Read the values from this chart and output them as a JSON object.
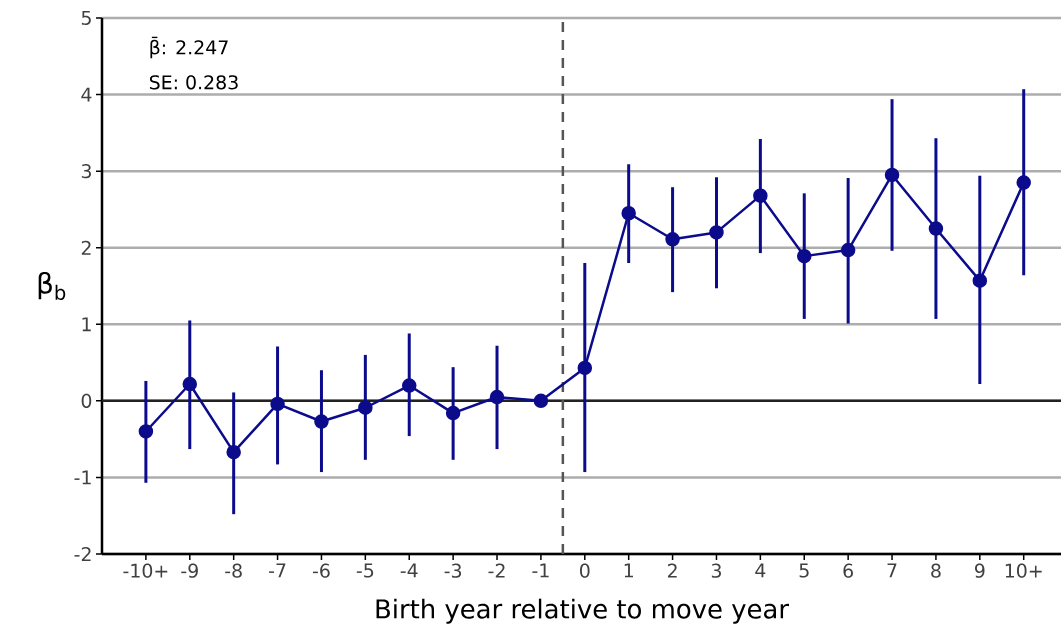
{
  "chart_data": {
    "type": "line",
    "xlabel": "Birth year relative to move year",
    "ylabel": "β$_{b}$",
    "x": [
      -10,
      -9,
      -8,
      -7,
      -6,
      -5,
      -4,
      -3,
      -2,
      -1,
      0,
      1,
      2,
      3,
      4,
      5,
      6,
      7,
      8,
      9,
      10
    ],
    "series": [
      {
        "color": "#0b0b8c",
        "values": [
          -0.4,
          0.22,
          -0.67,
          -0.04,
          -0.27,
          -0.09,
          0.2,
          -0.16,
          0.05,
          0,
          0.43,
          2.45,
          2.11,
          2.2,
          2.68,
          1.89,
          1.97,
          2.95,
          2.25,
          1.57,
          2.85
        ],
        "errors": [
          [
            -1.07,
            0.26
          ],
          [
            -0.63,
            1.05
          ],
          [
            -1.48,
            0.11
          ],
          [
            -0.83,
            0.71
          ],
          [
            -0.93,
            0.4
          ],
          [
            -0.77,
            0.6
          ],
          [
            -0.46,
            0.88
          ],
          [
            -0.77,
            0.44
          ],
          [
            -0.63,
            0.72
          ],
          null,
          [
            -0.93,
            1.8
          ],
          [
            1.8,
            3.09
          ],
          [
            1.42,
            2.79
          ],
          [
            1.47,
            2.92
          ],
          [
            1.93,
            3.42
          ],
          [
            1.07,
            2.71
          ],
          [
            1.01,
            2.91
          ],
          [
            1.96,
            3.94
          ],
          [
            1.07,
            3.43
          ],
          [
            0.22,
            2.94
          ],
          [
            1.64,
            4.07
          ]
        ]
      }
    ],
    "xlim": [
      -11,
      10.85
    ],
    "ylim": [
      -2,
      5
    ],
    "xticks": [
      {
        "value": -10,
        "label": "-10+"
      },
      -9,
      -8,
      -7,
      -6,
      -5,
      -4,
      -3,
      -2,
      -1,
      0,
      1,
      2,
      3,
      4,
      5,
      6,
      7,
      8,
      9,
      {
        "value": 10,
        "label": "10+"
      }
    ],
    "yticks": [
      -2,
      -1,
      0,
      1,
      2,
      3,
      4,
      5
    ],
    "ref_lines": [
      {
        "axis": "y",
        "value": 0,
        "color": "#222222",
        "line_style": "solid"
      },
      {
        "axis": "x",
        "value": -0.5,
        "color": "#555555",
        "line_style": "dashed"
      }
    ],
    "annotations": [
      "β̄:  2.247",
      "SE:  0.283"
    ],
    "grid": "y",
    "marker": "circle",
    "line_style": "solid"
  }
}
